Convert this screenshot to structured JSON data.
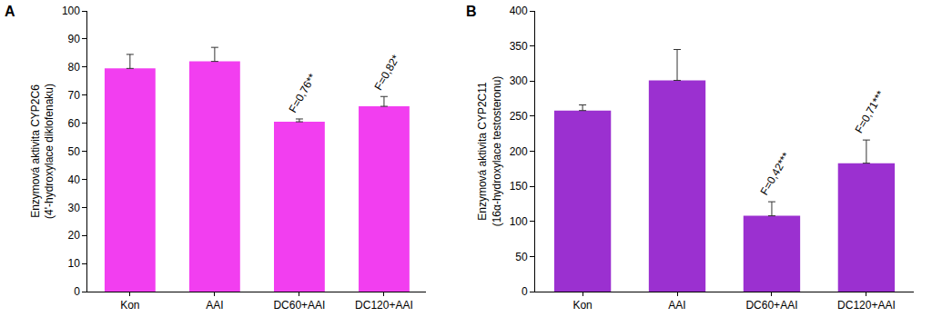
{
  "chart_data": [
    {
      "type": "bar",
      "title": "A",
      "ylabel": [
        "Enzymová aktivita CYP2C6",
        "(4'-hydroxylace diklofenaku)"
      ],
      "categories": [
        "Kon",
        "AAI",
        "DC60+AAI",
        "DC120+AAI"
      ],
      "values": [
        79.5,
        82,
        60.5,
        66
      ],
      "errors": [
        5,
        5,
        1,
        3.5
      ],
      "color": "#f23ef0",
      "ylim": [
        0,
        100
      ],
      "yticks": [
        0,
        10,
        20,
        30,
        40,
        50,
        60,
        70,
        80,
        90,
        100
      ],
      "grid": false,
      "annotations": [
        {
          "category": "DC60+AAI",
          "text": "F=0,76**"
        },
        {
          "category": "DC120+AAI",
          "text": "F=0,82*"
        }
      ]
    },
    {
      "type": "bar",
      "title": "B",
      "ylabel": [
        "Enzymová aktivita CYP2C11",
        "(16α-hydroxylace testosteronu)"
      ],
      "categories": [
        "Kon",
        "AAI",
        "DC60+AAI",
        "DC120+AAI"
      ],
      "values": [
        258,
        301,
        108,
        183
      ],
      "errors": [
        8,
        44,
        20,
        33
      ],
      "color": "#9b30d0",
      "ylim": [
        0,
        400
      ],
      "yticks": [
        0,
        50,
        100,
        150,
        200,
        250,
        300,
        350,
        400
      ],
      "grid": false,
      "annotations": [
        {
          "category": "DC60+AAI",
          "text": "F=0,42***"
        },
        {
          "category": "DC120+AAI",
          "text": "F=0,71***"
        }
      ]
    }
  ]
}
